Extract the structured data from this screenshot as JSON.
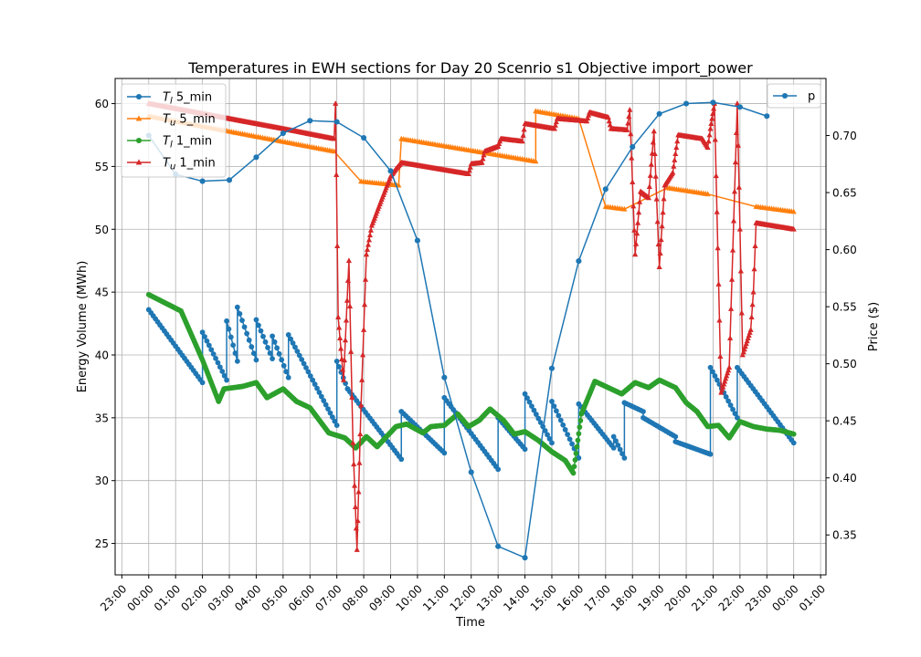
{
  "chart_data": {
    "type": "line",
    "title": "Temperatures in EWH sections for Day 20 Scenrio s1 Objective import_power",
    "xlabel": "Time",
    "ylabel_left": "Energy Volume (MWh)",
    "ylabel_right": "Price ($)",
    "x_unit": "hours from 00:00 of Day 20",
    "xlim": [
      -1.25,
      25.2
    ],
    "ylim_left": [
      22.5,
      62
    ],
    "ylim_right": [
      0.315,
      0.75
    ],
    "grid": true,
    "x_tick_labels": [
      "23:00",
      "00:00",
      "01:00",
      "02:00",
      "03:00",
      "04:00",
      "05:00",
      "06:00",
      "07:00",
      "08:00",
      "09:00",
      "10:00",
      "11:00",
      "12:00",
      "13:00",
      "14:00",
      "15:00",
      "16:00",
      "17:00",
      "18:00",
      "19:00",
      "20:00",
      "21:00",
      "22:00",
      "23:00",
      "00:00",
      "01:00"
    ],
    "x_ticks": [
      -1,
      0,
      1,
      2,
      3,
      4,
      5,
      6,
      7,
      8,
      9,
      10,
      11,
      12,
      13,
      14,
      15,
      16,
      17,
      18,
      19,
      20,
      21,
      22,
      23,
      24,
      25
    ],
    "y_ticks_left": [
      25,
      30,
      35,
      40,
      45,
      50,
      55,
      60
    ],
    "y_ticks_right": [
      0.35,
      0.4,
      0.45,
      0.5,
      0.55,
      0.6,
      0.65,
      0.7
    ],
    "legend_left": {
      "position": "top-left",
      "entries": [
        {
          "prefix": "T",
          "sub": "l",
          "suffix": " 5_min",
          "color": "#1f77b4",
          "marker": "circle"
        },
        {
          "prefix": "T",
          "sub": "u",
          "suffix": " 5_min",
          "color": "#ff7f0e",
          "marker": "triangle"
        },
        {
          "prefix": "T",
          "sub": "l",
          "suffix": " 1_min",
          "color": "#2ca02c",
          "marker": "circle"
        },
        {
          "prefix": "T",
          "sub": "u",
          "suffix": " 1_min",
          "color": "#d62728",
          "marker": "triangle"
        }
      ]
    },
    "legend_right": {
      "position": "top-right",
      "entries": [
        {
          "label": "p",
          "color": "#1f77b4",
          "marker": "circle"
        }
      ]
    },
    "series": [
      {
        "name": "T_l 5_min",
        "axis": "left",
        "color": "#1f77b4",
        "marker": "circle",
        "style": "sawtooth",
        "segments": [
          {
            "x0": 0.0,
            "x1": 2.0,
            "y0": 43.6,
            "y1": 37.8
          },
          {
            "x0": 2.0,
            "x1": 2.9,
            "y0": 41.8,
            "y1": 38.0
          },
          {
            "x0": 2.9,
            "x1": 3.3,
            "y0": 42.7,
            "y1": 39.5
          },
          {
            "x0": 3.3,
            "x1": 4.0,
            "y0": 43.8,
            "y1": 39.6
          },
          {
            "x0": 4.0,
            "x1": 4.6,
            "y0": 42.8,
            "y1": 39.7
          },
          {
            "x0": 4.6,
            "x1": 5.2,
            "y0": 41.5,
            "y1": 38.2
          },
          {
            "x0": 5.2,
            "x1": 7.0,
            "y0": 41.6,
            "y1": 34.4
          },
          {
            "x0": 7.0,
            "x1": 7.4,
            "y0": 39.5,
            "y1": 37.3
          },
          {
            "x0": 7.4,
            "x1": 9.4,
            "y0": 37.3,
            "y1": 31.7
          },
          {
            "x0": 9.4,
            "x1": 11.0,
            "y0": 35.5,
            "y1": 32.2
          },
          {
            "x0": 11.0,
            "x1": 13.0,
            "y0": 36.6,
            "y1": 30.9
          },
          {
            "x0": 13.0,
            "x1": 14.0,
            "y0": 35.0,
            "y1": 32.5
          },
          {
            "x0": 14.0,
            "x1": 15.0,
            "y0": 36.9,
            "y1": 33.0
          },
          {
            "x0": 15.0,
            "x1": 16.0,
            "y0": 36.3,
            "y1": 31.8
          },
          {
            "x0": 16.0,
            "x1": 17.3,
            "y0": 36.1,
            "y1": 32.6
          },
          {
            "x0": 17.3,
            "x1": 17.7,
            "y0": 33.5,
            "y1": 31.8
          },
          {
            "x0": 17.7,
            "x1": 18.4,
            "y0": 36.2,
            "y1": 35.5
          },
          {
            "x0": 18.4,
            "x1": 19.6,
            "y0": 35.0,
            "y1": 33.5
          },
          {
            "x0": 19.6,
            "x1": 20.9,
            "y0": 33.1,
            "y1": 32.1
          },
          {
            "x0": 20.9,
            "x1": 21.9,
            "y0": 39.0,
            "y1": 35.0
          },
          {
            "x0": 21.9,
            "x1": 24.0,
            "y0": 39.0,
            "y1": 33.0
          }
        ]
      },
      {
        "name": "T_u 5_min",
        "axis": "left",
        "color": "#ff7f0e",
        "marker": "triangle",
        "style": "sawtooth",
        "segments": [
          {
            "x0": 0.0,
            "x1": 6.9,
            "y0": 59.0,
            "y1": 56.2
          },
          {
            "x0": 7.9,
            "x1": 9.3,
            "y0": 53.8,
            "y1": 53.5
          },
          {
            "x0": 9.4,
            "x1": 14.4,
            "y0": 57.2,
            "y1": 55.4
          },
          {
            "x0": 14.4,
            "x1": 16.0,
            "y0": 59.4,
            "y1": 58.8
          },
          {
            "x0": 17.0,
            "x1": 17.7,
            "y0": 51.8,
            "y1": 51.6
          },
          {
            "x0": 19.3,
            "x1": 20.8,
            "y0": 53.3,
            "y1": 52.8
          },
          {
            "x0": 22.6,
            "x1": 24.0,
            "y0": 51.8,
            "y1": 51.4
          }
        ]
      },
      {
        "name": "T_l 1_min",
        "axis": "left",
        "color": "#2ca02c",
        "marker": "circle",
        "style": "dense",
        "points": [
          [
            0,
            44.8
          ],
          [
            1.2,
            43.5
          ],
          [
            2.0,
            39.6
          ],
          [
            2.6,
            36.3
          ],
          [
            2.8,
            37.3
          ],
          [
            3.5,
            37.5
          ],
          [
            4.0,
            37.8
          ],
          [
            4.4,
            36.6
          ],
          [
            5.0,
            37.3
          ],
          [
            5.5,
            36.3
          ],
          [
            6.0,
            35.8
          ],
          [
            6.7,
            33.8
          ],
          [
            7.3,
            33.4
          ],
          [
            7.7,
            32.6
          ],
          [
            8.1,
            33.5
          ],
          [
            8.5,
            32.7
          ],
          [
            9.2,
            34.3
          ],
          [
            9.6,
            34.5
          ],
          [
            10.2,
            33.8
          ],
          [
            10.5,
            34.3
          ],
          [
            11.0,
            34.4
          ],
          [
            11.5,
            35.3
          ],
          [
            11.9,
            34.3
          ],
          [
            12.3,
            34.8
          ],
          [
            12.7,
            35.7
          ],
          [
            13.2,
            34.8
          ],
          [
            13.6,
            33.7
          ],
          [
            14.0,
            33.9
          ],
          [
            14.5,
            33.2
          ],
          [
            15.0,
            32.3
          ],
          [
            15.5,
            31.6
          ],
          [
            15.8,
            30.6
          ],
          [
            16.1,
            35.3
          ],
          [
            16.6,
            37.9
          ],
          [
            17.0,
            37.5
          ],
          [
            17.6,
            36.9
          ],
          [
            18.1,
            37.8
          ],
          [
            18.6,
            37.4
          ],
          [
            19.0,
            38.0
          ],
          [
            19.6,
            37.4
          ],
          [
            20.0,
            36.2
          ],
          [
            20.4,
            35.5
          ],
          [
            20.8,
            34.3
          ],
          [
            21.2,
            34.4
          ],
          [
            21.6,
            33.4
          ],
          [
            22.0,
            34.7
          ],
          [
            22.5,
            34.3
          ],
          [
            23.0,
            34.1
          ],
          [
            23.5,
            34.0
          ],
          [
            24.0,
            33.7
          ]
        ]
      },
      {
        "name": "T_u 1_min",
        "axis": "left",
        "color": "#d62728",
        "marker": "triangle",
        "style": "dense",
        "points": [
          [
            0,
            60.0
          ],
          [
            3.0,
            58.8
          ],
          [
            5.0,
            58.0
          ],
          [
            6.9,
            57.2
          ],
          [
            6.95,
            60.0
          ],
          [
            7.05,
            43.0
          ],
          [
            7.25,
            38.0
          ],
          [
            7.45,
            47.5
          ],
          [
            7.6,
            33.0
          ],
          [
            7.75,
            24.5
          ],
          [
            7.9,
            36.0
          ],
          [
            8.1,
            48.0
          ],
          [
            8.3,
            50.3
          ],
          [
            8.6,
            52.0
          ],
          [
            9.0,
            54.2
          ],
          [
            9.2,
            54.8
          ],
          [
            9.4,
            55.3
          ],
          [
            11.9,
            54.4
          ],
          [
            12.0,
            55.2
          ],
          [
            12.4,
            55.3
          ],
          [
            12.5,
            56.2
          ],
          [
            13.0,
            56.6
          ],
          [
            13.1,
            57.2
          ],
          [
            13.9,
            57.0
          ],
          [
            14.0,
            58.4
          ],
          [
            15.1,
            58.0
          ],
          [
            15.2,
            58.8
          ],
          [
            16.3,
            58.6
          ],
          [
            16.4,
            59.3
          ],
          [
            17.1,
            58.9
          ],
          [
            17.2,
            58.0
          ],
          [
            17.8,
            57.9
          ],
          [
            17.9,
            59.5
          ],
          [
            18.1,
            48.0
          ],
          [
            18.3,
            53.0
          ],
          [
            18.6,
            52.5
          ],
          [
            18.8,
            57.8
          ],
          [
            19.0,
            47.0
          ],
          [
            19.2,
            53.5
          ],
          [
            19.5,
            54.5
          ],
          [
            19.7,
            57.5
          ],
          [
            20.6,
            57.2
          ],
          [
            20.8,
            56.5
          ],
          [
            20.9,
            58.0
          ],
          [
            21.05,
            60.0
          ],
          [
            21.3,
            37.0
          ],
          [
            21.6,
            39.0
          ],
          [
            21.9,
            60.0
          ],
          [
            22.1,
            40.0
          ],
          [
            22.4,
            42.0
          ],
          [
            22.5,
            45.0
          ],
          [
            22.6,
            50.5
          ],
          [
            24.0,
            50.0
          ]
        ]
      },
      {
        "name": "p",
        "axis": "right",
        "color": "#1f77b4",
        "marker": "circle",
        "style": "plain",
        "points": [
          [
            0,
            0.7
          ],
          [
            1,
            0.666
          ],
          [
            2,
            0.66
          ],
          [
            3,
            0.661
          ],
          [
            4,
            0.681
          ],
          [
            5,
            0.702
          ],
          [
            6,
            0.713
          ],
          [
            7,
            0.712
          ],
          [
            8,
            0.698
          ],
          [
            9,
            0.669
          ],
          [
            10,
            0.608
          ],
          [
            11,
            0.488
          ],
          [
            12,
            0.405
          ],
          [
            13,
            0.34
          ],
          [
            14,
            0.33
          ],
          [
            15,
            0.496
          ],
          [
            16,
            0.59
          ],
          [
            17,
            0.653
          ],
          [
            18,
            0.69
          ],
          [
            19,
            0.719
          ],
          [
            20,
            0.728
          ],
          [
            21,
            0.729
          ],
          [
            22,
            0.725
          ],
          [
            23,
            0.717
          ]
        ]
      }
    ]
  }
}
